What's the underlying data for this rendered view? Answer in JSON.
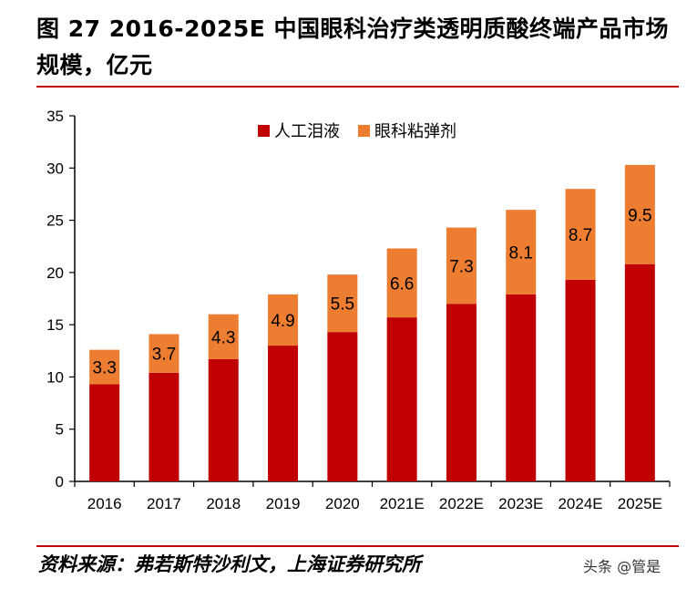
{
  "title": "图 27 2016-2025E 中国眼科治疗类透明质酸终端产品市场规模，亿元",
  "source": "资料来源：弗若斯特沙利文，上海证券研究所",
  "watermark": "头条 @管是",
  "colors": {
    "accent": "#c00000",
    "series1": "#c00000",
    "series2": "#ed7d31"
  },
  "chart_data": {
    "type": "bar",
    "stacked": true,
    "categories": [
      "2016",
      "2017",
      "2018",
      "2019",
      "2020",
      "2021E",
      "2022E",
      "2023E",
      "2024E",
      "2025E"
    ],
    "series": [
      {
        "name": "人工泪液",
        "values": [
          9.3,
          10.4,
          11.7,
          13.0,
          14.3,
          15.7,
          17.0,
          17.9,
          19.3,
          20.8
        ],
        "color": "#c00000"
      },
      {
        "name": "眼科粘弹剂",
        "values": [
          3.3,
          3.7,
          4.3,
          4.9,
          5.5,
          6.6,
          7.3,
          8.1,
          8.7,
          9.5
        ],
        "color": "#ed7d31",
        "data_labels": true
      }
    ],
    "ylim": [
      0,
      35
    ],
    "yticks": [
      0,
      5,
      10,
      15,
      20,
      25,
      30,
      35
    ],
    "grid": false,
    "legend": "top"
  }
}
